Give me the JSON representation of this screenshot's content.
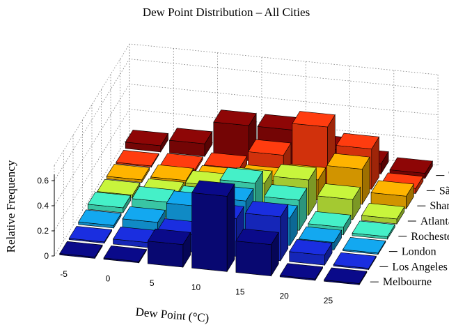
{
  "chart_data": {
    "type": "bar3d",
    "title": "Dew Point Distribution – All Cities",
    "xlabel": "Dew Point (°C)",
    "ylabel": "",
    "zlabel": "Relative Frequency",
    "x_ticks": [
      -5,
      0,
      5,
      10,
      15,
      20,
      25
    ],
    "z_ticks": [
      0,
      0.2,
      0.4,
      0.6
    ],
    "z_tick_labels": [
      "0",
      "0.2",
      "0.4",
      "0.6"
    ],
    "zlim": [
      0,
      0.6
    ],
    "grid": true,
    "cities": [
      {
        "name": "Melbourne",
        "color": "#0a0a8a",
        "values": [
          0.01,
          0.01,
          0.18,
          0.6,
          0.25,
          0.01,
          0.01
        ]
      },
      {
        "name": "Los Angeles",
        "color": "#1a2ee0",
        "values": [
          0.01,
          0.04,
          0.14,
          0.3,
          0.35,
          0.08,
          0.01
        ]
      },
      {
        "name": "London",
        "color": "#13a8f0",
        "values": [
          0.02,
          0.08,
          0.24,
          0.32,
          0.22,
          0.06,
          0.01
        ]
      },
      {
        "name": "Rochester",
        "color": "#45f0c8",
        "values": [
          0.04,
          0.12,
          0.16,
          0.34,
          0.24,
          0.06,
          0.02
        ]
      },
      {
        "name": "Atlanta",
        "color": "#c8f53c",
        "values": [
          0.02,
          0.06,
          0.16,
          0.22,
          0.28,
          0.16,
          0.04
        ]
      },
      {
        "name": "Shanghai",
        "color": "#ffb400",
        "values": [
          0.02,
          0.05,
          0.08,
          0.12,
          0.16,
          0.28,
          0.1
        ]
      },
      {
        "name": "São Paulo",
        "color": "#ff3c0f",
        "values": [
          0.01,
          0.02,
          0.06,
          0.2,
          0.46,
          0.32,
          0.04
        ]
      },
      {
        "name": "Tokyo",
        "color": "#8e0606",
        "values": [
          0.05,
          0.1,
          0.28,
          0.28,
          0.16,
          0.08,
          0.04
        ]
      }
    ]
  }
}
